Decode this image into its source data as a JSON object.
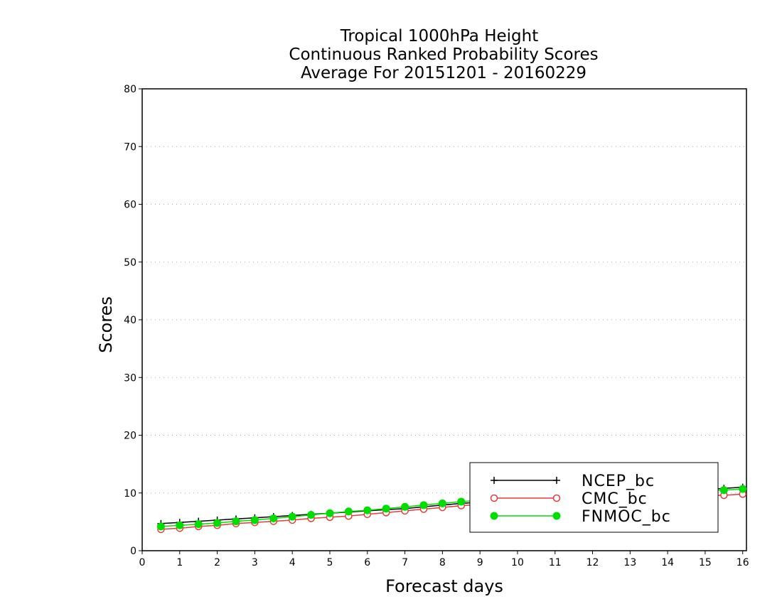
{
  "chart_data": {
    "type": "line",
    "title": [
      "Tropical 1000hPa Height",
      "Continuous Ranked Probability Scores",
      "Average For 20151201 - 20160229"
    ],
    "xlabel": "Forecast days",
    "ylabel": "Scores",
    "xlim": [
      0,
      16.1
    ],
    "ylim": [
      0,
      80
    ],
    "xticks": [
      "0",
      "1",
      "2",
      "3",
      "4",
      "5",
      "6",
      "7",
      "8",
      "9",
      "10",
      "11",
      "12",
      "13",
      "14",
      "15",
      "16"
    ],
    "yticks": [
      "0",
      "10",
      "20",
      "30",
      "40",
      "50",
      "60",
      "70",
      "80"
    ],
    "grid": "horizontal-dotted",
    "legend_position": "bottom-right",
    "x": [
      0.5,
      1,
      1.5,
      2,
      2.5,
      3,
      3.5,
      4,
      4.5,
      5,
      5.5,
      6,
      6.5,
      7,
      7.5,
      8,
      8.5,
      9,
      9.5,
      10,
      10.5,
      11,
      11.5,
      12,
      12.5,
      13,
      13.5,
      14,
      14.5,
      15,
      15.5,
      16
    ],
    "series": [
      {
        "name": "NCEP_bc",
        "color": "#000000",
        "marker": "plus",
        "values": [
          4.7,
          4.9,
          5.1,
          5.3,
          5.5,
          5.7,
          5.9,
          6.1,
          6.3,
          6.5,
          6.7,
          6.9,
          7.1,
          7.3,
          7.6,
          7.9,
          8.2,
          8.4,
          8.6,
          8.8,
          9.0,
          9.2,
          9.4,
          9.6,
          9.8,
          10.0,
          10.2,
          10.3,
          10.4,
          10.6,
          10.8,
          11.0
        ]
      },
      {
        "name": "CMC_bc",
        "color": "#e03c3c",
        "marker": "open-circle",
        "values": [
          3.7,
          3.9,
          4.2,
          4.4,
          4.7,
          4.9,
          5.1,
          5.3,
          5.6,
          5.8,
          6.0,
          6.3,
          6.6,
          6.9,
          7.2,
          7.5,
          7.8,
          8.0,
          8.2,
          8.4,
          8.6,
          8.7,
          8.8,
          8.9,
          9.0,
          9.1,
          9.2,
          9.3,
          9.4,
          9.5,
          9.6,
          9.8
        ]
      },
      {
        "name": "FNMOC_bc",
        "color": "#00dd00",
        "marker": "filled-circle",
        "values": [
          4.2,
          4.4,
          4.6,
          4.8,
          5.1,
          5.3,
          5.6,
          5.9,
          6.2,
          6.5,
          6.8,
          7.0,
          7.3,
          7.6,
          7.9,
          8.2,
          8.5,
          8.7,
          8.9,
          9.1,
          9.3,
          9.5,
          9.6,
          9.8,
          9.9,
          10.0,
          10.1,
          10.2,
          10.3,
          10.4,
          10.5,
          10.7
        ]
      }
    ]
  }
}
